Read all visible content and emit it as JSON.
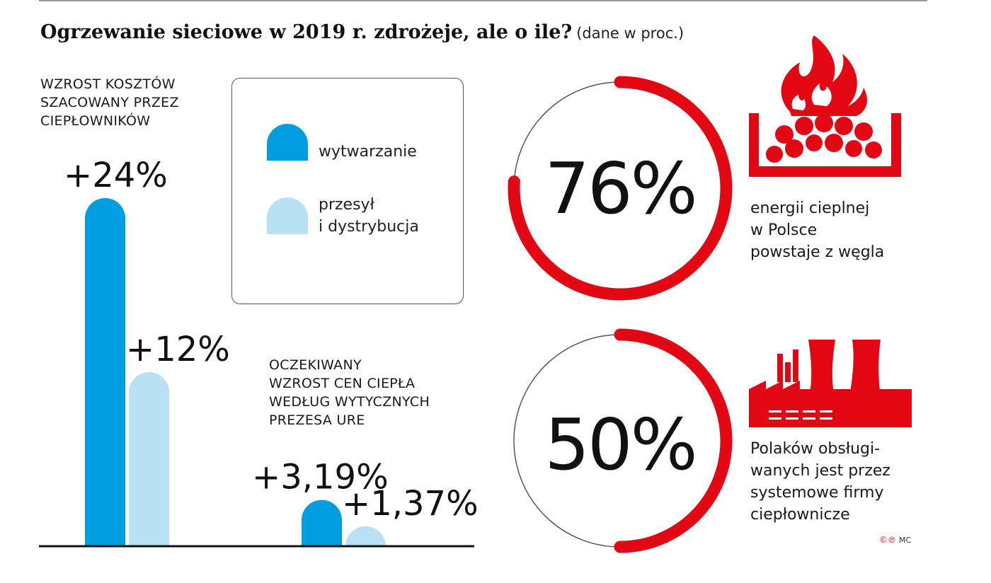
{
  "header": {
    "title": "Ogrzewanie sieciowe w 2019 r. zdrożeje, ale o ile?",
    "subtitle": "(dane w proc.)"
  },
  "legend": {
    "items": [
      {
        "label": "wytwarzanie",
        "color": "#009ee0"
      },
      {
        "label": "przesył\ni dystrybucja",
        "color": "#b9e1f6"
      }
    ]
  },
  "chart_data": {
    "type": "bar",
    "title": "Ogrzewanie sieciowe w 2019 r. zdrożeje, ale o ile?",
    "categories": [
      "WZROST KOSZTÓW\nSZACOWANY PRZEZ\nCIEPŁOWNIKÓW",
      "OCZEKIWANY\nWZROST CEN CIEPŁA\nWEDŁUG WYTYCZNYCH\nPREZESA URE"
    ],
    "series": [
      {
        "name": "wytwarzanie",
        "values": [
          24,
          3.19
        ],
        "labels": [
          "+24%",
          "+3,19%"
        ],
        "color": "#009ee0"
      },
      {
        "name": "przesył i dystrybucja",
        "values": [
          12,
          1.37
        ],
        "labels": [
          "+12%",
          "+1,37%"
        ],
        "color": "#b9e1f6"
      }
    ],
    "ylim": [
      0,
      24
    ],
    "grid": false,
    "legend": "top-center"
  },
  "stats": [
    {
      "value": 76,
      "label": "76%",
      "text": "energii cieplnej\nw Polsce\npowstaje z węgla",
      "icon": "coal-fire-icon"
    },
    {
      "value": 50,
      "label": "50%",
      "text": "Polaków obsługi-\nwanych jest przez\nsystemowe firmy\nciepłownicze",
      "icon": "power-plant-icon"
    }
  ],
  "colors": {
    "accent": "#e30613",
    "dark_blue": "#009ee0",
    "light_blue": "#b9e1f6"
  },
  "credit": {
    "logo": "©℗",
    "author": "MC"
  }
}
